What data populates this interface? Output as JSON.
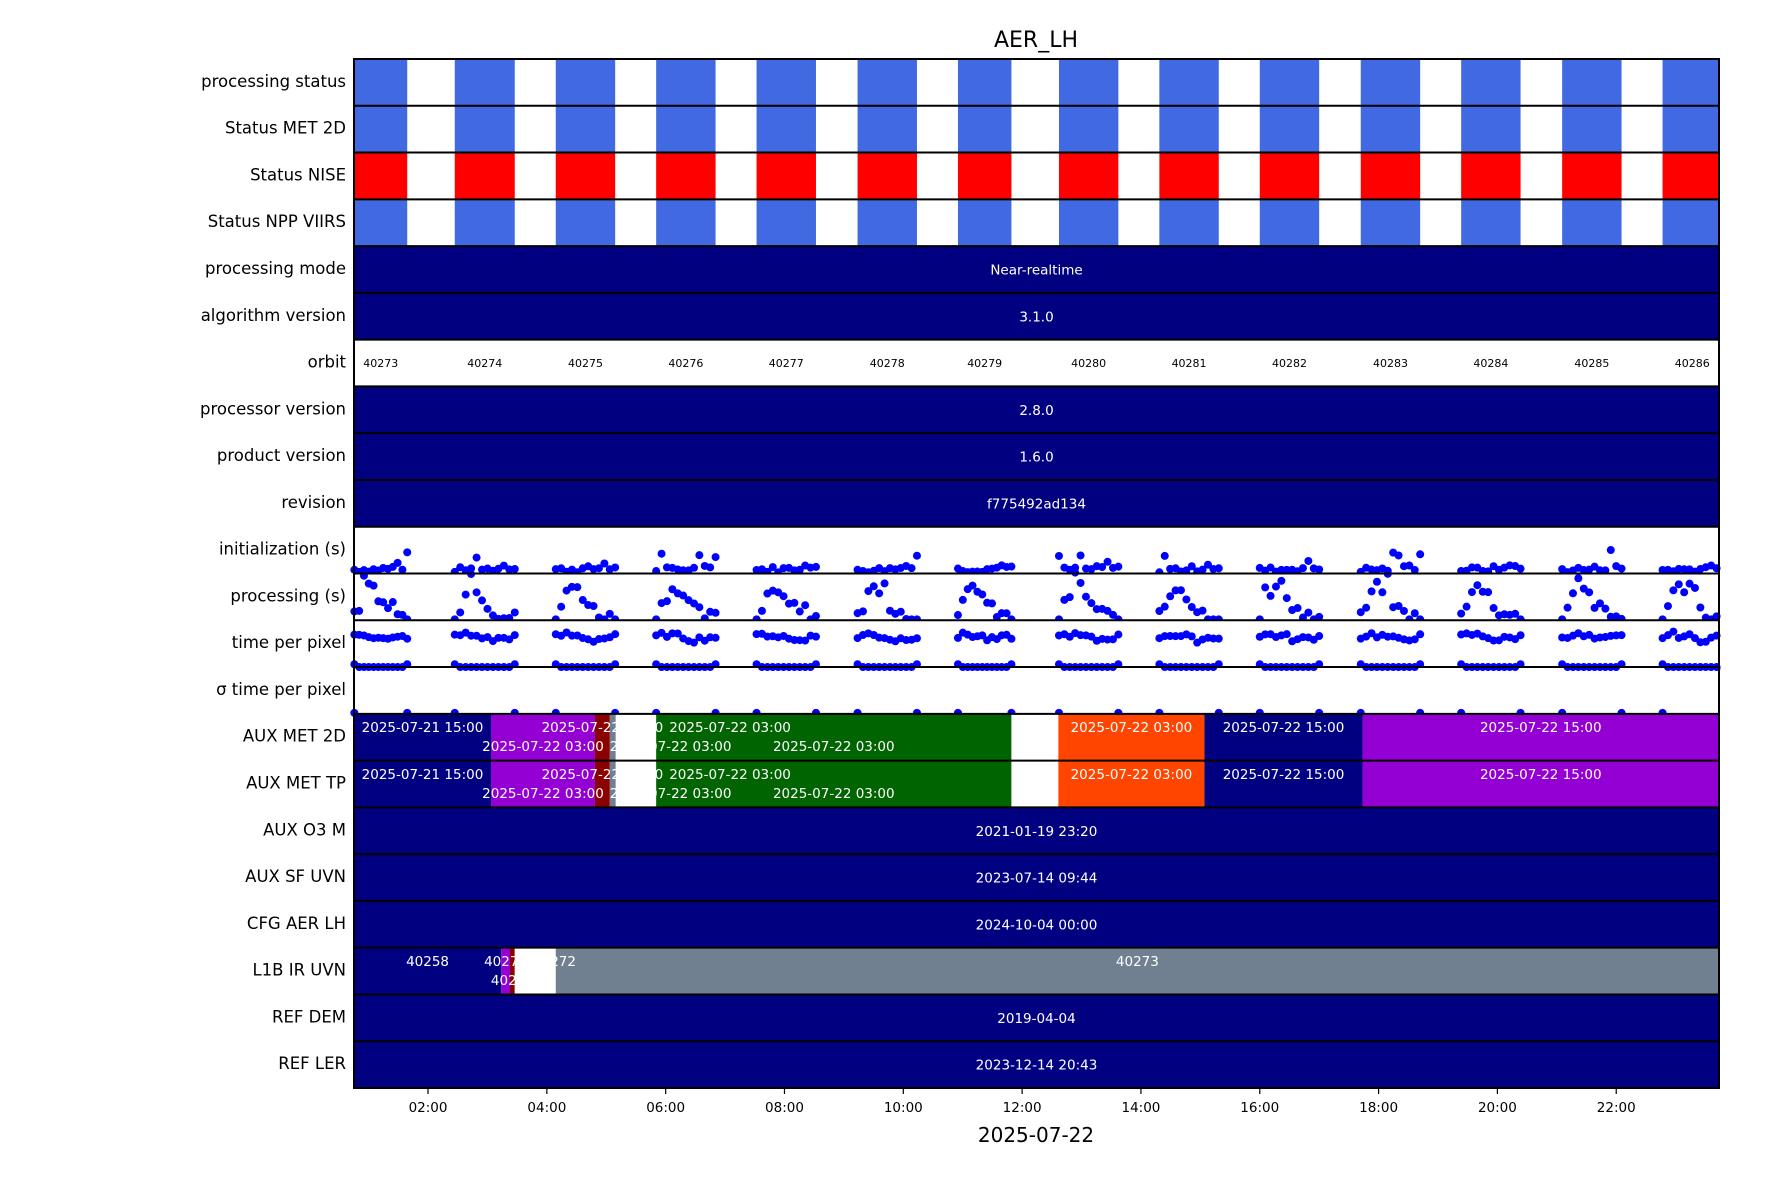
{
  "chart_data": {
    "type": "table",
    "title": "AER_LH",
    "xlabel": "2025-07-22",
    "x_unit": "hours of 2025-07-22",
    "xlim": [
      0.754,
      23.73
    ],
    "x_ticks": [
      {
        "value": 2,
        "label": "02:00"
      },
      {
        "value": 4,
        "label": "04:00"
      },
      {
        "value": 6,
        "label": "06:00"
      },
      {
        "value": 8,
        "label": "08:00"
      },
      {
        "value": 10,
        "label": "10:00"
      },
      {
        "value": 12,
        "label": "12:00"
      },
      {
        "value": 14,
        "label": "14:00"
      },
      {
        "value": 16,
        "label": "16:00"
      },
      {
        "value": 18,
        "label": "18:00"
      },
      {
        "value": 20,
        "label": "20:00"
      },
      {
        "value": 22,
        "label": "22:00"
      }
    ],
    "colors": {
      "ok": "#4169e1",
      "error": "#ff0000",
      "navy": "#000080",
      "purple": "#9400d3",
      "darkred": "#8b0000",
      "slategray": "#708090",
      "green": "#006400",
      "orangered": "#ff4500",
      "white": "#ffffff",
      "dots": "#0000ff"
    },
    "orbits": [
      {
        "label": "40273",
        "start": 0.76,
        "end": 1.65
      },
      {
        "label": "40274",
        "start": 2.45,
        "end": 3.46
      },
      {
        "label": "40275",
        "start": 4.15,
        "end": 5.15
      },
      {
        "label": "40276",
        "start": 5.84,
        "end": 6.84
      },
      {
        "label": "40277",
        "start": 7.53,
        "end": 8.53
      },
      {
        "label": "40278",
        "start": 9.23,
        "end": 10.23
      },
      {
        "label": "40279",
        "start": 10.92,
        "end": 11.82
      },
      {
        "label": "40280",
        "start": 12.62,
        "end": 13.62
      },
      {
        "label": "40281",
        "start": 14.31,
        "end": 15.31
      },
      {
        "label": "40282",
        "start": 16.0,
        "end": 17.0
      },
      {
        "label": "40283",
        "start": 17.7,
        "end": 18.7
      },
      {
        "label": "40284",
        "start": 19.39,
        "end": 20.39
      },
      {
        "label": "40285",
        "start": 21.09,
        "end": 22.09
      },
      {
        "label": "40286",
        "start": 22.78,
        "end": 23.78
      }
    ],
    "rows": [
      {
        "label": "processing status",
        "kind": "status",
        "color": "ok"
      },
      {
        "label": "Status MET 2D",
        "kind": "status",
        "color": "ok"
      },
      {
        "label": "Status NISE",
        "kind": "status",
        "color": "error"
      },
      {
        "label": "Status NPP VIIRS",
        "kind": "status",
        "color": "ok"
      },
      {
        "label": "processing mode",
        "kind": "segments",
        "segments": [
          {
            "start": 0.754,
            "end": 23.73,
            "color": "navy",
            "label": "Near-realtime"
          }
        ]
      },
      {
        "label": "algorithm version",
        "kind": "segments",
        "segments": [
          {
            "start": 0.754,
            "end": 23.73,
            "color": "navy",
            "label": "3.1.0"
          }
        ]
      },
      {
        "label": "orbit",
        "kind": "orbit"
      },
      {
        "label": "processor version",
        "kind": "segments",
        "segments": [
          {
            "start": 0.754,
            "end": 23.73,
            "color": "navy",
            "label": "2.8.0"
          }
        ]
      },
      {
        "label": "product version",
        "kind": "segments",
        "segments": [
          {
            "start": 0.754,
            "end": 23.73,
            "color": "navy",
            "label": "1.6.0"
          }
        ]
      },
      {
        "label": "revision",
        "kind": "segments",
        "segments": [
          {
            "start": 0.754,
            "end": 23.73,
            "color": "navy",
            "label": "f775492ad134"
          }
        ]
      },
      {
        "label": "initialization (s)",
        "kind": "scatter",
        "pattern": [
          0.08,
          0.08,
          0.08,
          0.09,
          0.08,
          0.09,
          0.1,
          0.1,
          0.12,
          0.22,
          0.12,
          0.1
        ],
        "jitter": 0.06
      },
      {
        "label": "processing (s)",
        "kind": "scatter",
        "pattern": [
          0.05,
          0.3,
          0.55,
          0.68,
          0.72,
          0.55,
          0.35,
          0.22,
          0.15,
          0.1,
          0.06,
          0.05
        ],
        "jitter": 0.15
      },
      {
        "label": "time per pixel",
        "kind": "scatter2",
        "pattern": [
          0.65,
          0.68,
          0.7,
          0.68,
          0.66,
          0.65,
          0.6,
          0.58,
          0.6,
          0.62,
          0.64,
          0.65
        ],
        "low": 0.04,
        "jitter": 0.06
      },
      {
        "label": "σ time per pixel",
        "kind": "scatter3"
      },
      {
        "label": "AUX MET 2D",
        "kind": "segments",
        "segments": [
          {
            "start": 0.754,
            "end": 3.06,
            "color": "navy",
            "label": "2025-07-21 15:00"
          },
          {
            "start": 3.06,
            "end": 4.81,
            "color": "purple",
            "label": "2025-07-22 03:00"
          },
          {
            "start": 4.81,
            "end": 5.06,
            "color": "darkred",
            "label": "2025-07-22 03:00"
          },
          {
            "start": 5.06,
            "end": 5.16,
            "color": "slategray",
            "label": "2025-07-22 03:00"
          },
          {
            "start": 5.16,
            "end": 5.84,
            "color": "white",
            "label": "2025-07-22 03:00"
          },
          {
            "start": 5.84,
            "end": 11.82,
            "color": "green",
            "label": "2025-07-22 03:00"
          },
          {
            "start": 11.82,
            "end": 12.61,
            "color": "white",
            "label": ""
          },
          {
            "start": 12.61,
            "end": 15.07,
            "color": "orangered",
            "label": "2025-07-22 03:00"
          },
          {
            "start": 15.07,
            "end": 17.73,
            "color": "navy",
            "label": "2025-07-22 15:00"
          },
          {
            "start": 17.73,
            "end": 23.73,
            "color": "purple",
            "label": "2025-07-22 15:00"
          }
        ]
      },
      {
        "label": "AUX MET TP",
        "kind": "segments",
        "segments": [
          {
            "start": 0.754,
            "end": 3.06,
            "color": "navy",
            "label": "2025-07-21 15:00"
          },
          {
            "start": 3.06,
            "end": 4.81,
            "color": "purple",
            "label": "2025-07-22 03:00"
          },
          {
            "start": 4.81,
            "end": 5.06,
            "color": "darkred",
            "label": "2025-07-22 03:00"
          },
          {
            "start": 5.06,
            "end": 5.16,
            "color": "slategray",
            "label": "2025-07-22 03:00"
          },
          {
            "start": 5.16,
            "end": 5.84,
            "color": "white",
            "label": "2025-07-22 03:00"
          },
          {
            "start": 5.84,
            "end": 11.82,
            "color": "green",
            "label": "2025-07-22 03:00"
          },
          {
            "start": 11.82,
            "end": 12.61,
            "color": "white",
            "label": ""
          },
          {
            "start": 12.61,
            "end": 15.07,
            "color": "orangered",
            "label": "2025-07-22 03:00"
          },
          {
            "start": 15.07,
            "end": 17.73,
            "color": "navy",
            "label": "2025-07-22 15:00"
          },
          {
            "start": 17.73,
            "end": 23.73,
            "color": "purple",
            "label": "2025-07-22 15:00"
          }
        ]
      },
      {
        "label": "AUX O3   M",
        "kind": "segments",
        "segments": [
          {
            "start": 0.754,
            "end": 23.73,
            "color": "navy",
            "label": "2021-01-19 23:20"
          }
        ]
      },
      {
        "label": "AUX SF UVN",
        "kind": "segments",
        "segments": [
          {
            "start": 0.754,
            "end": 23.73,
            "color": "navy",
            "label": "2023-07-14 09:44"
          }
        ]
      },
      {
        "label": "CFG AER LH",
        "kind": "segments",
        "segments": [
          {
            "start": 0.754,
            "end": 23.73,
            "color": "navy",
            "label": "2024-10-04 00:00"
          }
        ]
      },
      {
        "label": "L1B IR UVN",
        "kind": "segments",
        "segments": [
          {
            "start": 0.754,
            "end": 3.23,
            "color": "navy",
            "label": "40258"
          },
          {
            "start": 3.23,
            "end": 3.38,
            "color": "purple",
            "label": "40270"
          },
          {
            "start": 3.38,
            "end": 3.46,
            "color": "darkred",
            "label": "40271"
          },
          {
            "start": 3.46,
            "end": 4.15,
            "color": "white",
            "label": "40272"
          },
          {
            "start": 4.15,
            "end": 23.73,
            "color": "slategray",
            "label": "40273"
          }
        ]
      },
      {
        "label": "REF DEM",
        "kind": "segments",
        "segments": [
          {
            "start": 0.754,
            "end": 23.73,
            "color": "navy",
            "label": "2019-04-04"
          }
        ]
      },
      {
        "label": "REF LER",
        "kind": "segments",
        "segments": [
          {
            "start": 0.754,
            "end": 23.73,
            "color": "navy",
            "label": "2023-12-14 20:43"
          }
        ]
      }
    ]
  }
}
